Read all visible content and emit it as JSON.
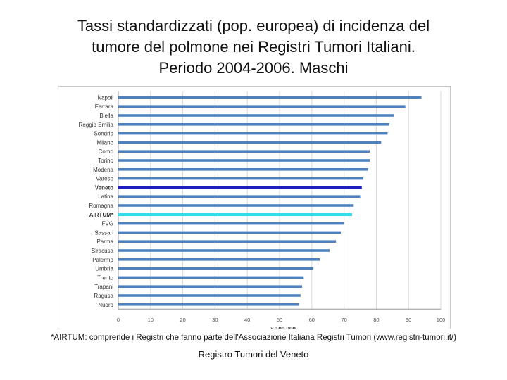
{
  "title_lines": [
    "Tassi standardizzati (pop. europea) di incidenza del",
    "tumore del polmone nei Registri Tumori Italiani.",
    "Periodo 2004-2006. Maschi"
  ],
  "footnote": "*AIRTUM: comprende i Registri che fanno parte dell'Associazione Italiana Registri Tumori (www.registri-tumori.it/)",
  "source": "Registro Tumori del Veneto",
  "colors": {
    "default_bar": "#4f81bd",
    "veneto_bar": "#1f1fbf",
    "airtum_bar": "#33ddee",
    "gridline": "#d9d9d9"
  },
  "chart_data": {
    "type": "bar",
    "orientation": "horizontal",
    "categories": [
      "Napoli",
      "Ferrara",
      "Biella",
      "Reggio Emilia",
      "Sondrio",
      "Milano",
      "Como",
      "Torino",
      "Modena",
      "Varese",
      "Veneto",
      "Latina",
      "Romagna",
      "AIRTUM*",
      "FVG",
      "Sassari",
      "Parma",
      "Siracusa",
      "Palermo",
      "Umbria",
      "Trento",
      "Trapani",
      "Ragusa",
      "Nuoro"
    ],
    "values": [
      94,
      89,
      85.5,
      84,
      83.5,
      81.5,
      78,
      78,
      77.5,
      76,
      75.5,
      75,
      73,
      72.5,
      70,
      69,
      67.5,
      65.5,
      62.5,
      60.5,
      57.5,
      57,
      56.5,
      56
    ],
    "highlight": {
      "Veneto": "veneto_bar",
      "AIRTUM*": "airtum_bar"
    },
    "xlim": [
      0,
      100
    ],
    "xticks": [
      0,
      10,
      20,
      30,
      40,
      50,
      60,
      70,
      80,
      90,
      100
    ],
    "xlabel": "x 100,000",
    "grid": true
  }
}
